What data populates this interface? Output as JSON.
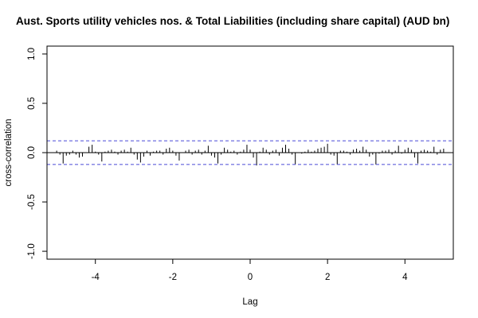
{
  "chart_data": {
    "type": "bar",
    "title": "Aust. Sports utility vehicles nos.  & Total Liabilities (including share capital) (AUD bn)",
    "xlabel": "Lag",
    "ylabel": "cross-correlation",
    "xlim": [
      -5.25,
      5.25
    ],
    "ylim": [
      -1.08,
      1.08
    ],
    "x_ticks": [
      -4,
      -2,
      0,
      2,
      4
    ],
    "x_tick_labels": [
      "-4",
      "-2",
      "0",
      "2",
      "4"
    ],
    "y_ticks": [
      -1.0,
      -0.5,
      0.0,
      0.5,
      1.0
    ],
    "y_tick_labels": [
      "-1.0",
      "-0.5",
      "0.0",
      "0.5",
      "1.0"
    ],
    "confidence_bounds": [
      0.12,
      -0.12
    ],
    "confidence_color": "#4a4ad6",
    "bar_color": "#000000",
    "grid": false,
    "x": [
      -5.0,
      -4.9167,
      -4.8333,
      -4.75,
      -4.6667,
      -4.5833,
      -4.5,
      -4.4167,
      -4.3333,
      -4.25,
      -4.1667,
      -4.0833,
      -4.0,
      -3.9167,
      -3.8333,
      -3.75,
      -3.6667,
      -3.5833,
      -3.5,
      -3.4167,
      -3.3333,
      -3.25,
      -3.1667,
      -3.0833,
      -3.0,
      -2.9167,
      -2.8333,
      -2.75,
      -2.6667,
      -2.5833,
      -2.5,
      -2.4167,
      -2.3333,
      -2.25,
      -2.1667,
      -2.0833,
      -2.0,
      -1.9167,
      -1.8333,
      -1.75,
      -1.6667,
      -1.5833,
      -1.5,
      -1.4167,
      -1.3333,
      -1.25,
      -1.1667,
      -1.0833,
      -1.0,
      -0.9167,
      -0.8333,
      -0.75,
      -0.6667,
      -0.5833,
      -0.5,
      -0.4167,
      -0.3333,
      -0.25,
      -0.1667,
      -0.0833,
      0.0,
      0.0833,
      0.1667,
      0.25,
      0.3333,
      0.4167,
      0.5,
      0.5833,
      0.6667,
      0.75,
      0.8333,
      0.9167,
      1.0,
      1.0833,
      1.1667,
      1.25,
      1.3333,
      1.4167,
      1.5,
      1.5833,
      1.6667,
      1.75,
      1.8333,
      1.9167,
      2.0,
      2.0833,
      2.1667,
      2.25,
      2.3333,
      2.4167,
      2.5,
      2.5833,
      2.6667,
      2.75,
      2.8333,
      2.9167,
      3.0,
      3.0833,
      3.1667,
      3.25,
      3.3333,
      3.4167,
      3.5,
      3.5833,
      3.6667,
      3.75,
      3.8333,
      3.9167,
      4.0,
      4.0833,
      4.1667,
      4.25,
      4.3333,
      4.4167,
      4.5,
      4.5833,
      4.6667,
      4.75,
      4.8333,
      4.9167,
      5.0
    ],
    "values": [
      0.02,
      -0.02,
      -0.11,
      -0.03,
      -0.02,
      0.02,
      -0.02,
      -0.05,
      -0.04,
      0.0,
      0.06,
      0.08,
      0.01,
      -0.02,
      -0.09,
      0.01,
      0.02,
      0.03,
      0.01,
      -0.02,
      0.02,
      0.03,
      0.01,
      0.05,
      -0.02,
      -0.07,
      -0.1,
      -0.04,
      0.02,
      -0.03,
      0.01,
      0.02,
      0.02,
      -0.02,
      0.04,
      0.05,
      0.02,
      -0.03,
      -0.08,
      0.0,
      0.02,
      0.03,
      -0.02,
      0.02,
      0.03,
      -0.02,
      0.02,
      0.07,
      -0.03,
      -0.05,
      -0.11,
      -0.02,
      0.05,
      0.03,
      0.01,
      0.02,
      -0.02,
      0.01,
      0.03,
      0.08,
      0.03,
      -0.05,
      -0.13,
      0.01,
      0.05,
      0.03,
      -0.02,
      0.02,
      0.03,
      -0.03,
      0.05,
      0.08,
      0.04,
      -0.02,
      -0.12,
      0.0,
      -0.01,
      0.01,
      0.03,
      0.01,
      0.02,
      0.04,
      0.05,
      0.06,
      0.09,
      -0.02,
      -0.03,
      -0.12,
      0.02,
      0.02,
      0.01,
      -0.02,
      0.03,
      0.04,
      0.02,
      0.06,
      0.03,
      -0.04,
      -0.02,
      -0.12,
      -0.01,
      0.02,
      0.02,
      0.03,
      -0.02,
      0.02,
      0.07,
      -0.01,
      0.03,
      0.05,
      0.03,
      -0.05,
      -0.11,
      0.02,
      0.03,
      0.02,
      0.01,
      0.06,
      -0.02,
      0.03,
      0.04
    ]
  }
}
